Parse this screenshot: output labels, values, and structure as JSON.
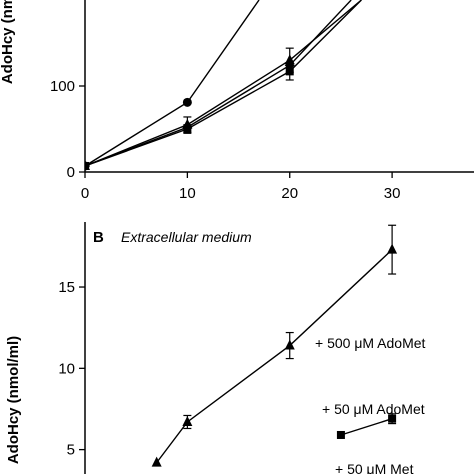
{
  "chart_data": [
    {
      "type": "line",
      "panel": "A",
      "title": "",
      "xlabel": "",
      "ylabel": "AdoHcy (nmol/ml)",
      "ylabel_visible": "AdoHcy   (nm",
      "x_ticks": [
        0,
        10,
        20,
        30
      ],
      "y_ticks": [
        0,
        100
      ],
      "xlim": [
        0,
        38
      ],
      "ylim": [
        0,
        200
      ],
      "grid": false,
      "series": [
        {
          "marker": "circle",
          "x": [
            0,
            10,
            17
          ],
          "y": [
            7,
            81,
            200
          ]
        },
        {
          "marker": "triangle",
          "x": [
            0,
            10,
            20,
            27
          ],
          "y": [
            7,
            55,
            130,
            200
          ],
          "err": [
            0,
            9,
            14,
            0
          ]
        },
        {
          "marker": "square",
          "x": [
            0,
            10,
            20,
            27
          ],
          "y": [
            7,
            50,
            117,
            200
          ],
          "err": [
            0,
            5,
            10,
            0
          ]
        },
        {
          "marker": "diamond",
          "x": [
            0,
            10,
            20,
            26
          ],
          "y": [
            7,
            52,
            124,
            200
          ],
          "err": [
            0,
            0,
            0,
            0
          ]
        }
      ]
    },
    {
      "type": "line",
      "panel": "B",
      "title": "Extracellular medium",
      "panel_label": "B",
      "xlabel": "",
      "ylabel": "AdoHcy (nmol/ml)",
      "ylabel_visible": "AdoHcy   (nmol/ml)",
      "x_ticks": [],
      "y_ticks": [
        5,
        10,
        15
      ],
      "xlim": [
        0,
        38
      ],
      "ylim": [
        3.5,
        19
      ],
      "grid": false,
      "series": [
        {
          "name": "+ 500 μM AdoMet",
          "marker": "triangle",
          "x": [
            7,
            10,
            20,
            30
          ],
          "y": [
            4.2,
            6.7,
            11.4,
            17.3
          ],
          "err": [
            0,
            0.4,
            0.8,
            1.5
          ]
        },
        {
          "name": "+ 50 μM AdoMet",
          "marker": "square",
          "x": [
            25,
            30
          ],
          "y": [
            5.9,
            6.9
          ],
          "err": [
            0,
            0.3
          ]
        },
        {
          "name": "+ 50 μM Met",
          "marker": "none",
          "x": [],
          "y": []
        }
      ]
    }
  ]
}
